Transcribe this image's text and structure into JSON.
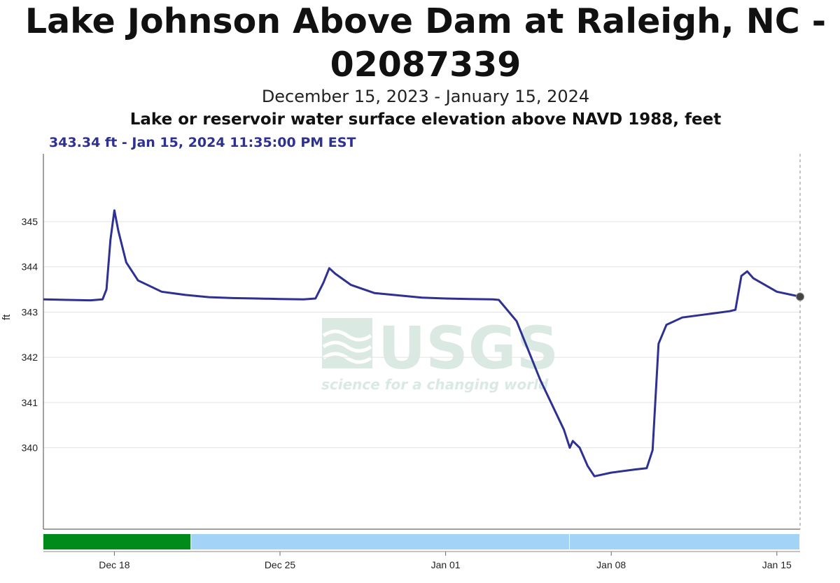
{
  "title_line1": "Lake Johnson Above Dam at Raleigh, NC -",
  "title_line2": "02087339",
  "date_range": "December 15, 2023 - January 15, 2024",
  "parameter": "Lake or reservoir water surface elevation above NAVD 1988, feet",
  "readout": "343.34 ft - Jan 15, 2024 11:35:00 PM EST",
  "watermark": {
    "logo_text": "USGS",
    "tagline": "science for a changing world"
  },
  "colors": {
    "line": "#2e3192",
    "grid": "#e3e3e3",
    "approved": "#008b1a",
    "provisional": "#a3d3f7",
    "watermark": "#dbe9e3"
  },
  "chart_data": {
    "type": "line",
    "title": "Lake Johnson Above Dam at Raleigh, NC - 02087339",
    "subtitle": "December 15, 2023 - January 15, 2024",
    "ylabel": "ft",
    "xlabel": "",
    "x_range": [
      "2023-12-15",
      "2024-01-15T23:35"
    ],
    "ylim": [
      338.2,
      346.5
    ],
    "yticks": [
      340,
      341,
      342,
      343,
      344,
      345
    ],
    "xticks": [
      {
        "date": "2023-12-18",
        "label": "Dec 18"
      },
      {
        "date": "2023-12-25",
        "label": "Dec 25"
      },
      {
        "date": "2024-01-01",
        "label": "Jan 01"
      },
      {
        "date": "2024-01-08",
        "label": "Jan 08"
      },
      {
        "date": "2024-01-15",
        "label": "Jan 15"
      }
    ],
    "grid": true,
    "series": [
      {
        "values": [
          [
            "2023-12-15T00:00",
            343.28
          ],
          [
            "2023-12-16T00:00",
            343.27
          ],
          [
            "2023-12-17T00:00",
            343.26
          ],
          [
            "2023-12-17T12:00",
            343.28
          ],
          [
            "2023-12-17T16:00",
            343.5
          ],
          [
            "2023-12-17T20:00",
            344.6
          ],
          [
            "2023-12-18T00:00",
            345.25
          ],
          [
            "2023-12-18T04:00",
            344.8
          ],
          [
            "2023-12-18T12:00",
            344.1
          ],
          [
            "2023-12-19T00:00",
            343.7
          ],
          [
            "2023-12-20T00:00",
            343.45
          ],
          [
            "2023-12-21T00:00",
            343.38
          ],
          [
            "2023-12-22T00:00",
            343.33
          ],
          [
            "2023-12-23T00:00",
            343.31
          ],
          [
            "2023-12-24T00:00",
            343.3
          ],
          [
            "2023-12-25T00:00",
            343.29
          ],
          [
            "2023-12-26T00:00",
            343.28
          ],
          [
            "2023-12-26T12:00",
            343.3
          ],
          [
            "2023-12-26T20:00",
            343.65
          ],
          [
            "2023-12-27T02:00",
            343.97
          ],
          [
            "2023-12-27T08:00",
            343.85
          ],
          [
            "2023-12-28T00:00",
            343.6
          ],
          [
            "2023-12-29T00:00",
            343.42
          ],
          [
            "2023-12-30T00:00",
            343.37
          ],
          [
            "2023-12-31T00:00",
            343.32
          ],
          [
            "2024-01-01T00:00",
            343.3
          ],
          [
            "2024-01-02T00:00",
            343.29
          ],
          [
            "2024-01-03T00:00",
            343.28
          ],
          [
            "2024-01-03T06:00",
            343.27
          ],
          [
            "2024-01-04T00:00",
            342.8
          ],
          [
            "2024-01-05T00:00",
            341.5
          ],
          [
            "2024-01-06T00:00",
            340.4
          ],
          [
            "2024-01-06T06:00",
            340.0
          ],
          [
            "2024-01-06T09:00",
            340.15
          ],
          [
            "2024-01-06T16:00",
            340.0
          ],
          [
            "2024-01-07T00:00",
            339.6
          ],
          [
            "2024-01-07T07:00",
            339.37
          ],
          [
            "2024-01-08T00:00",
            339.45
          ],
          [
            "2024-01-09T00:00",
            339.52
          ],
          [
            "2024-01-09T12:00",
            339.55
          ],
          [
            "2024-01-09T18:00",
            339.95
          ],
          [
            "2024-01-10T00:00",
            342.3
          ],
          [
            "2024-01-10T08:00",
            342.72
          ],
          [
            "2024-01-11T00:00",
            342.88
          ],
          [
            "2024-01-12T00:00",
            342.95
          ],
          [
            "2024-01-13T00:00",
            343.02
          ],
          [
            "2024-01-13T06:00",
            343.05
          ],
          [
            "2024-01-13T12:00",
            343.8
          ],
          [
            "2024-01-13T18:00",
            343.9
          ],
          [
            "2024-01-14T00:00",
            343.75
          ],
          [
            "2024-01-15T00:00",
            343.45
          ],
          [
            "2024-01-15T23:35",
            343.34
          ]
        ]
      }
    ],
    "status_bar": [
      {
        "start": "2023-12-15",
        "end": "2023-12-21T06:00",
        "color": "#008b1a"
      },
      {
        "start": "2023-12-21T06:00",
        "end": "2024-01-06T06:00",
        "color": "#a3d3f7"
      },
      {
        "start": "2024-01-06T06:00",
        "end": "2024-01-15T23:35",
        "color": "#a3d3f7"
      }
    ],
    "last_point": {
      "date": "2024-01-15T23:35",
      "value": 343.34
    }
  }
}
